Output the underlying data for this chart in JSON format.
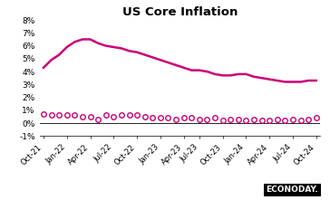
{
  "title": "US Core Inflation",
  "color": "#CC0077",
  "background_color": "#ffffff",
  "xlabels": [
    "Oct-21",
    "Jan-22",
    "Apr-22",
    "Jul-22",
    "Oct-22",
    "Jan-23",
    "Apr-23",
    "Jul-23",
    "Oct-23",
    "Jan-24",
    "Apr-24",
    "Jul-24",
    "Oct-24"
  ],
  "ylim": [
    -1,
    8
  ],
  "yticks": [
    -1,
    0,
    1,
    2,
    3,
    4,
    5,
    6,
    7,
    8
  ],
  "ytick_labels": [
    "-1%",
    "0%",
    "1%",
    "2%",
    "3%",
    "4%",
    "5%",
    "6%",
    "7%",
    "8%"
  ],
  "yy_data": [
    4.3,
    4.9,
    5.3,
    5.9,
    6.3,
    6.5,
    6.5,
    6.2,
    6.0,
    5.9,
    5.8,
    5.6,
    5.5,
    5.3,
    5.1,
    4.9,
    4.7,
    4.5,
    4.3,
    4.1,
    4.1,
    4.0,
    3.8,
    3.7,
    3.7,
    3.8,
    3.8,
    3.6,
    3.5,
    3.4,
    3.3,
    3.2,
    3.2,
    3.2,
    3.3,
    3.3
  ],
  "mm_data": [
    0.7,
    0.6,
    0.6,
    0.6,
    0.6,
    0.5,
    0.5,
    0.3,
    0.6,
    0.5,
    0.6,
    0.6,
    0.6,
    0.5,
    0.4,
    0.4,
    0.4,
    0.3,
    0.4,
    0.4,
    0.3,
    0.3,
    0.4,
    0.2,
    0.3,
    0.3,
    0.2,
    0.3,
    0.2,
    0.2,
    0.3,
    0.2,
    0.3,
    0.2,
    0.3,
    0.4
  ],
  "n_points": 36,
  "econoday_bg": "#000000",
  "econoday_text": "#ffffff"
}
